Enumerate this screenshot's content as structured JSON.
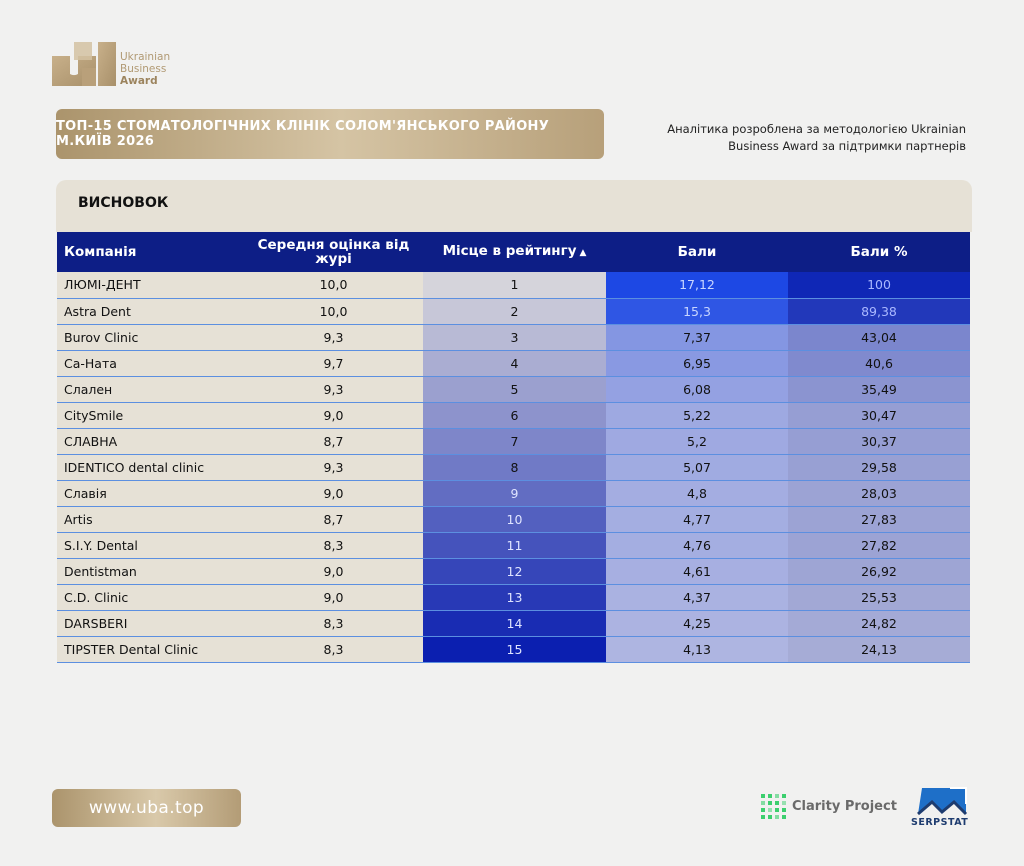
{
  "logo": {
    "line1": "Ukrainian",
    "line2": "Business",
    "line3": "Award"
  },
  "title": "ТОП-15 СТОМАТОЛОГІЧНИХ КЛІНІК СОЛОМ'ЯНСЬКОГО РАЙОНУ М.КИЇВ 2026",
  "analytics": {
    "line1": "Аналітика розроблена за методологією Ukrainian",
    "line2": "Business Award за підтримки партнерів"
  },
  "section_title": "ВИСНОВОК",
  "table": {
    "headers": [
      "Компанія",
      "Середня оцінка від журі",
      "Місце в рейтингу",
      "Бали",
      "Бали %"
    ],
    "rows": [
      {
        "company": "ЛЮМІ-ДЕНТ",
        "rating": "10,0",
        "place": "1",
        "score": "17,12",
        "percent": "100"
      },
      {
        "company": "Astra Dent",
        "rating": "10,0",
        "place": "2",
        "score": "15,3",
        "percent": "89,38"
      },
      {
        "company": "Burov Clinic",
        "rating": "9,3",
        "place": "3",
        "score": "7,37",
        "percent": "43,04"
      },
      {
        "company": "Са-Ната",
        "rating": "9,7",
        "place": "4",
        "score": "6,95",
        "percent": "40,6"
      },
      {
        "company": "Слален",
        "rating": "9,3",
        "place": "5",
        "score": "6,08",
        "percent": "35,49"
      },
      {
        "company": "CitySmile",
        "rating": "9,0",
        "place": "6",
        "score": "5,22",
        "percent": "30,47"
      },
      {
        "company": "СЛАВНА",
        "rating": "8,7",
        "place": "7",
        "score": "5,2",
        "percent": "30,37"
      },
      {
        "company": "IDENTICO dental clinic",
        "rating": "9,3",
        "place": "8",
        "score": "5,07",
        "percent": "29,58"
      },
      {
        "company": "Славія",
        "rating": "9,0",
        "place": "9",
        "score": "4,8",
        "percent": "28,03"
      },
      {
        "company": "Artis",
        "rating": "8,7",
        "place": "10",
        "score": "4,77",
        "percent": "27,83"
      },
      {
        "company": "S.I.Y. Dental",
        "rating": "8,3",
        "place": "11",
        "score": "4,76",
        "percent": "27,82"
      },
      {
        "company": "Dentistman",
        "rating": "9,0",
        "place": "12",
        "score": "4,61",
        "percent": "26,92"
      },
      {
        "company": "C.D. Clinic",
        "rating": "9,0",
        "place": "13",
        "score": "4,37",
        "percent": "25,53"
      },
      {
        "company": "DARSBERI",
        "rating": "8,3",
        "place": "14",
        "score": "4,25",
        "percent": "24,82"
      },
      {
        "company": "TIPSTER Dental Clinic",
        "rating": "8,3",
        "place": "15",
        "score": "4,13",
        "percent": "24,13"
      }
    ]
  },
  "website": "www.uba.top",
  "partners": {
    "clarity": "Clarity Project",
    "serpstat": "SERPSTAT"
  },
  "colors": {
    "gold": "#b8a07a",
    "header_navy": "#0d1e86",
    "row_beige": "#e6e1d6",
    "border_blue": "#5c8fe0"
  }
}
